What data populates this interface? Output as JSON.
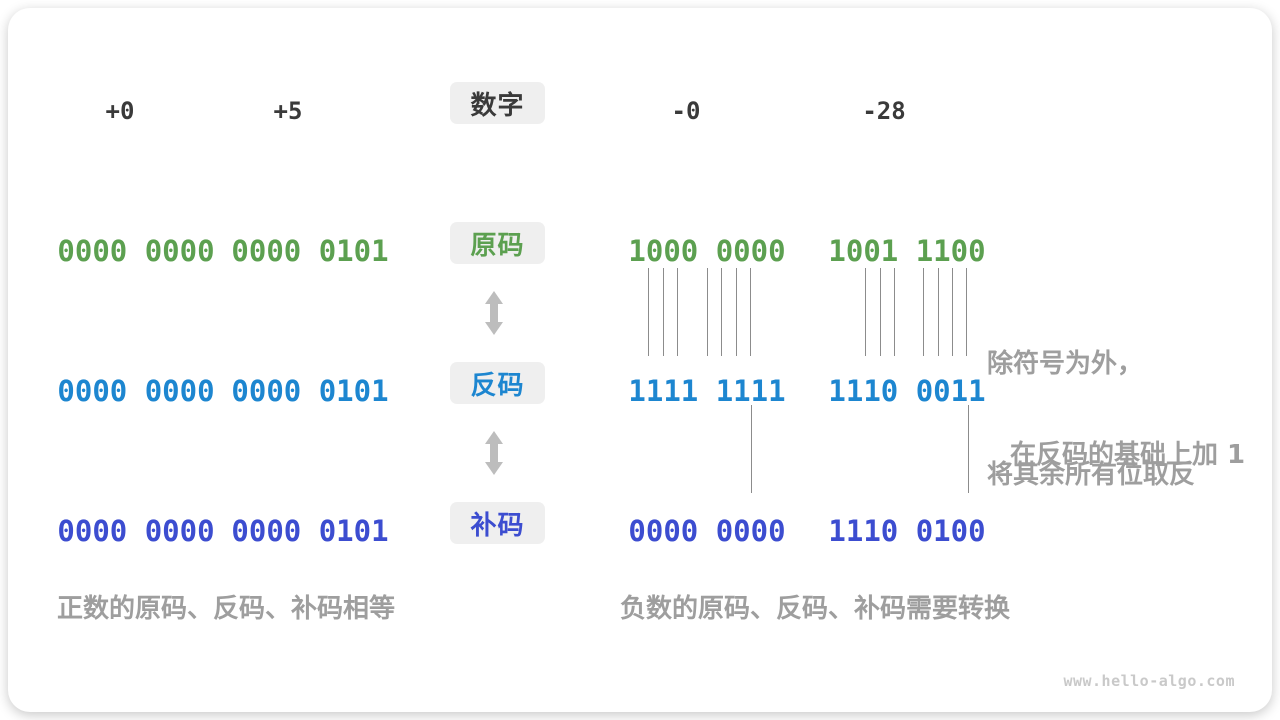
{
  "header": {
    "numbers": [
      "+0",
      "+5",
      "-0",
      "-28"
    ],
    "badge": "数字"
  },
  "rows": [
    {
      "badge": "原码",
      "color": "#5ca050",
      "values": [
        "0000 0000",
        "0000 0101",
        "1000 0000",
        "1001 1100"
      ]
    },
    {
      "badge": "反码",
      "color": "#1d86d0",
      "values": [
        "0000 0000",
        "0000 0101",
        "1111 1111",
        "1110 0011"
      ]
    },
    {
      "badge": "补码",
      "color": "#3c4dd0",
      "values": [
        "0000 0000",
        "0000 0101",
        "0000 0000",
        "1110 0100"
      ]
    }
  ],
  "annotations": {
    "invert_line1": "除符号为外，",
    "invert_line2": "将其余所有位取反",
    "add_one": "在反码的基础上加 1"
  },
  "captions": {
    "positive": "正数的原码、反码、补码相等",
    "negative": "负数的原码、反码、补码需要转换"
  },
  "watermark": "www.hello-algo.com",
  "colors": {
    "sign_magnitude": "#5ca050",
    "ones_complement": "#1d86d0",
    "twos_complement": "#3c4dd0",
    "annotation_gray": "#9e9e9e",
    "badge_background": "#efefef",
    "dark_text": "#3a3a3a",
    "arrow_gray": "#bdbdbd",
    "tick_line": "#8c8c8c",
    "watermark_gray": "#c9c9c9"
  }
}
